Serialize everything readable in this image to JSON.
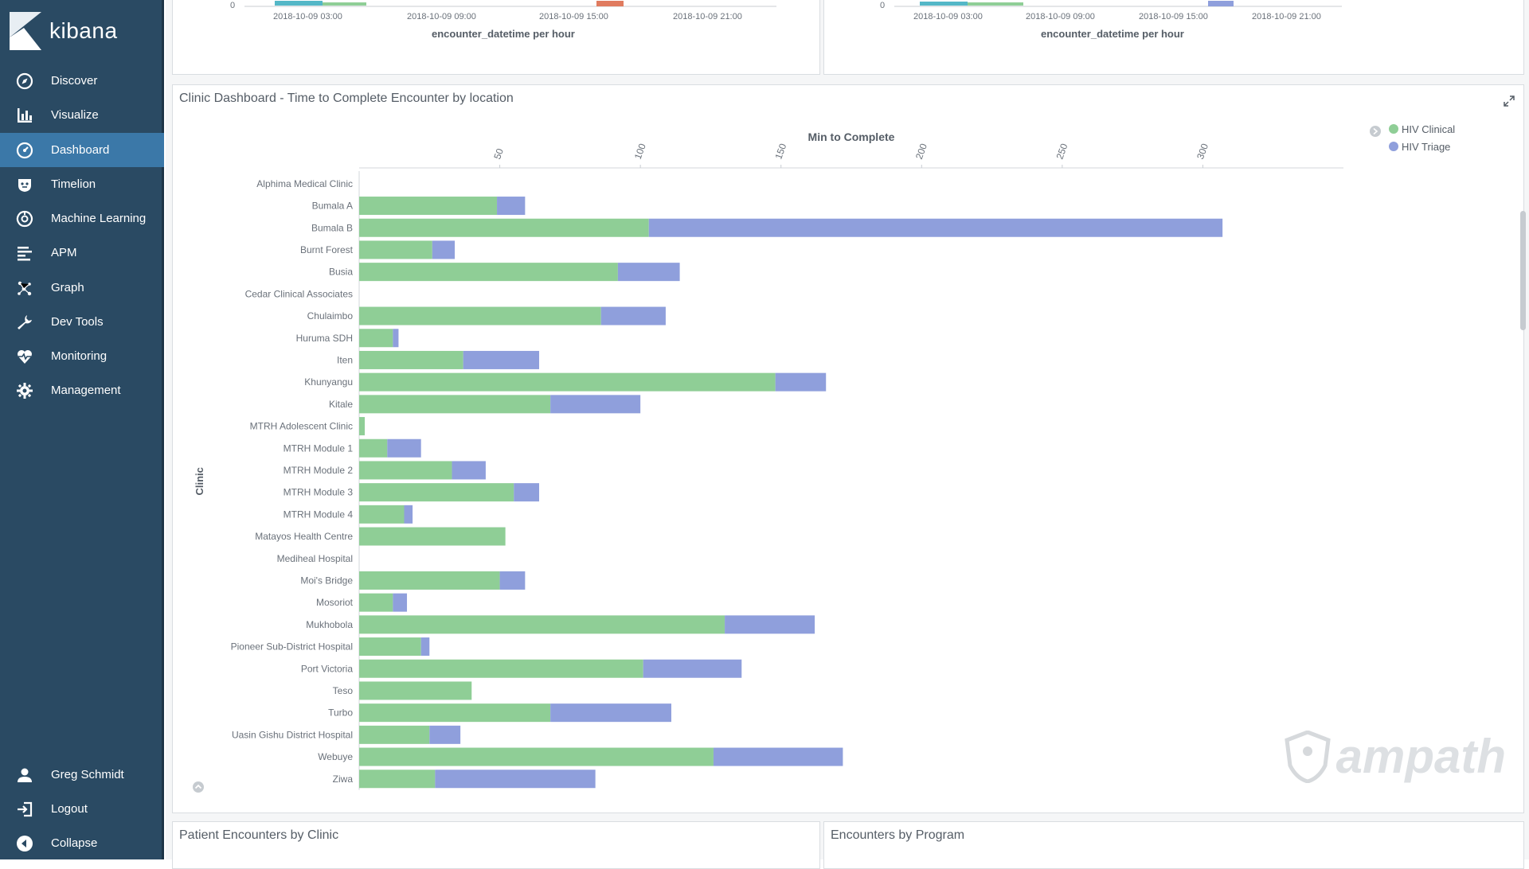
{
  "app": {
    "name": "kibana",
    "sidebar": {
      "items": [
        {
          "label": "Discover",
          "icon": "compass-icon",
          "active": false
        },
        {
          "label": "Visualize",
          "icon": "bar-chart-icon",
          "active": false
        },
        {
          "label": "Dashboard",
          "icon": "dashboard-icon",
          "active": true
        },
        {
          "label": "Timelion",
          "icon": "timelion-icon",
          "active": false
        },
        {
          "label": "Machine Learning",
          "icon": "machine-learning-icon",
          "active": false
        },
        {
          "label": "APM",
          "icon": "apm-icon",
          "active": false
        },
        {
          "label": "Graph",
          "icon": "graph-icon",
          "active": false
        },
        {
          "label": "Dev Tools",
          "icon": "wrench-icon",
          "active": false
        },
        {
          "label": "Monitoring",
          "icon": "heartbeat-icon",
          "active": false
        },
        {
          "label": "Management",
          "icon": "gear-icon",
          "active": false
        }
      ],
      "footer": [
        {
          "label": "Greg Schmidt",
          "icon": "user-icon"
        },
        {
          "label": "Logout",
          "icon": "logout-icon"
        },
        {
          "label": "Collapse",
          "icon": "collapse-icon"
        }
      ]
    }
  },
  "top_panels": [
    {
      "x_ticks": [
        "2018-10-09 03:00",
        "2018-10-09 09:00",
        "2018-10-09 15:00",
        "2018-10-09 21:00"
      ],
      "y_tick": "0",
      "x_title": "encounter_datetime per hour"
    },
    {
      "x_ticks": [
        "2018-10-09 03:00",
        "2018-10-09 09:00",
        "2018-10-09 15:00",
        "2018-10-09 21:00"
      ],
      "y_tick": "0",
      "x_title": "encounter_datetime per hour"
    }
  ],
  "main_panel": {
    "title": "Clinic Dashboard - Time to Complete Encounter by location"
  },
  "bottom_panels": [
    {
      "title": "Patient Encounters by Clinic"
    },
    {
      "title": "Encounters by Program"
    }
  ],
  "watermark": "ampath",
  "colors": {
    "hiv_clinical": "#8fce96",
    "hiv_triage": "#8f9fdc",
    "sidebar": "#2a4a63",
    "active": "#3b78a8"
  },
  "chart_data": {
    "type": "bar",
    "orientation": "horizontal",
    "stacked": true,
    "xlabel": "Min to Complete",
    "ylabel": "Clinic",
    "xlim": [
      0,
      350
    ],
    "x_ticks": [
      50,
      100,
      150,
      200,
      250,
      300
    ],
    "legend_position": "top-right",
    "categories": [
      "Alphima Medical Clinic",
      "Bumala A",
      "Bumala B",
      "Burnt Forest",
      "Busia",
      "Cedar Clinical Associates",
      "Chulaimbo",
      "Huruma SDH",
      "Iten",
      "Khunyangu",
      "Kitale",
      "MTRH Adolescent Clinic",
      "MTRH Module 1",
      "MTRH Module 2",
      "MTRH Module 3",
      "MTRH Module 4",
      "Matayos Health Centre",
      "Mediheal Hospital",
      "Moi's Bridge",
      "Mosoriot",
      "Mukhobola",
      "Pioneer Sub-District Hospital",
      "Port Victoria",
      "Teso",
      "Turbo",
      "Uasin Gishu District Hospital",
      "Webuye",
      "Ziwa"
    ],
    "series": [
      {
        "name": "HIV Clinical",
        "color": "#8fce96",
        "values": [
          0,
          49,
          103,
          26,
          92,
          0,
          86,
          12,
          37,
          148,
          68,
          2,
          10,
          33,
          55,
          16,
          52,
          0,
          50,
          12,
          130,
          22,
          101,
          40,
          68,
          25,
          126,
          27
        ]
      },
      {
        "name": "HIV Triage",
        "color": "#8f9fdc",
        "values": [
          0,
          10,
          204,
          8,
          22,
          0,
          23,
          2,
          27,
          18,
          32,
          0,
          12,
          12,
          9,
          3,
          0,
          0,
          9,
          5,
          32,
          3,
          35,
          0,
          43,
          11,
          46,
          57
        ]
      }
    ]
  }
}
